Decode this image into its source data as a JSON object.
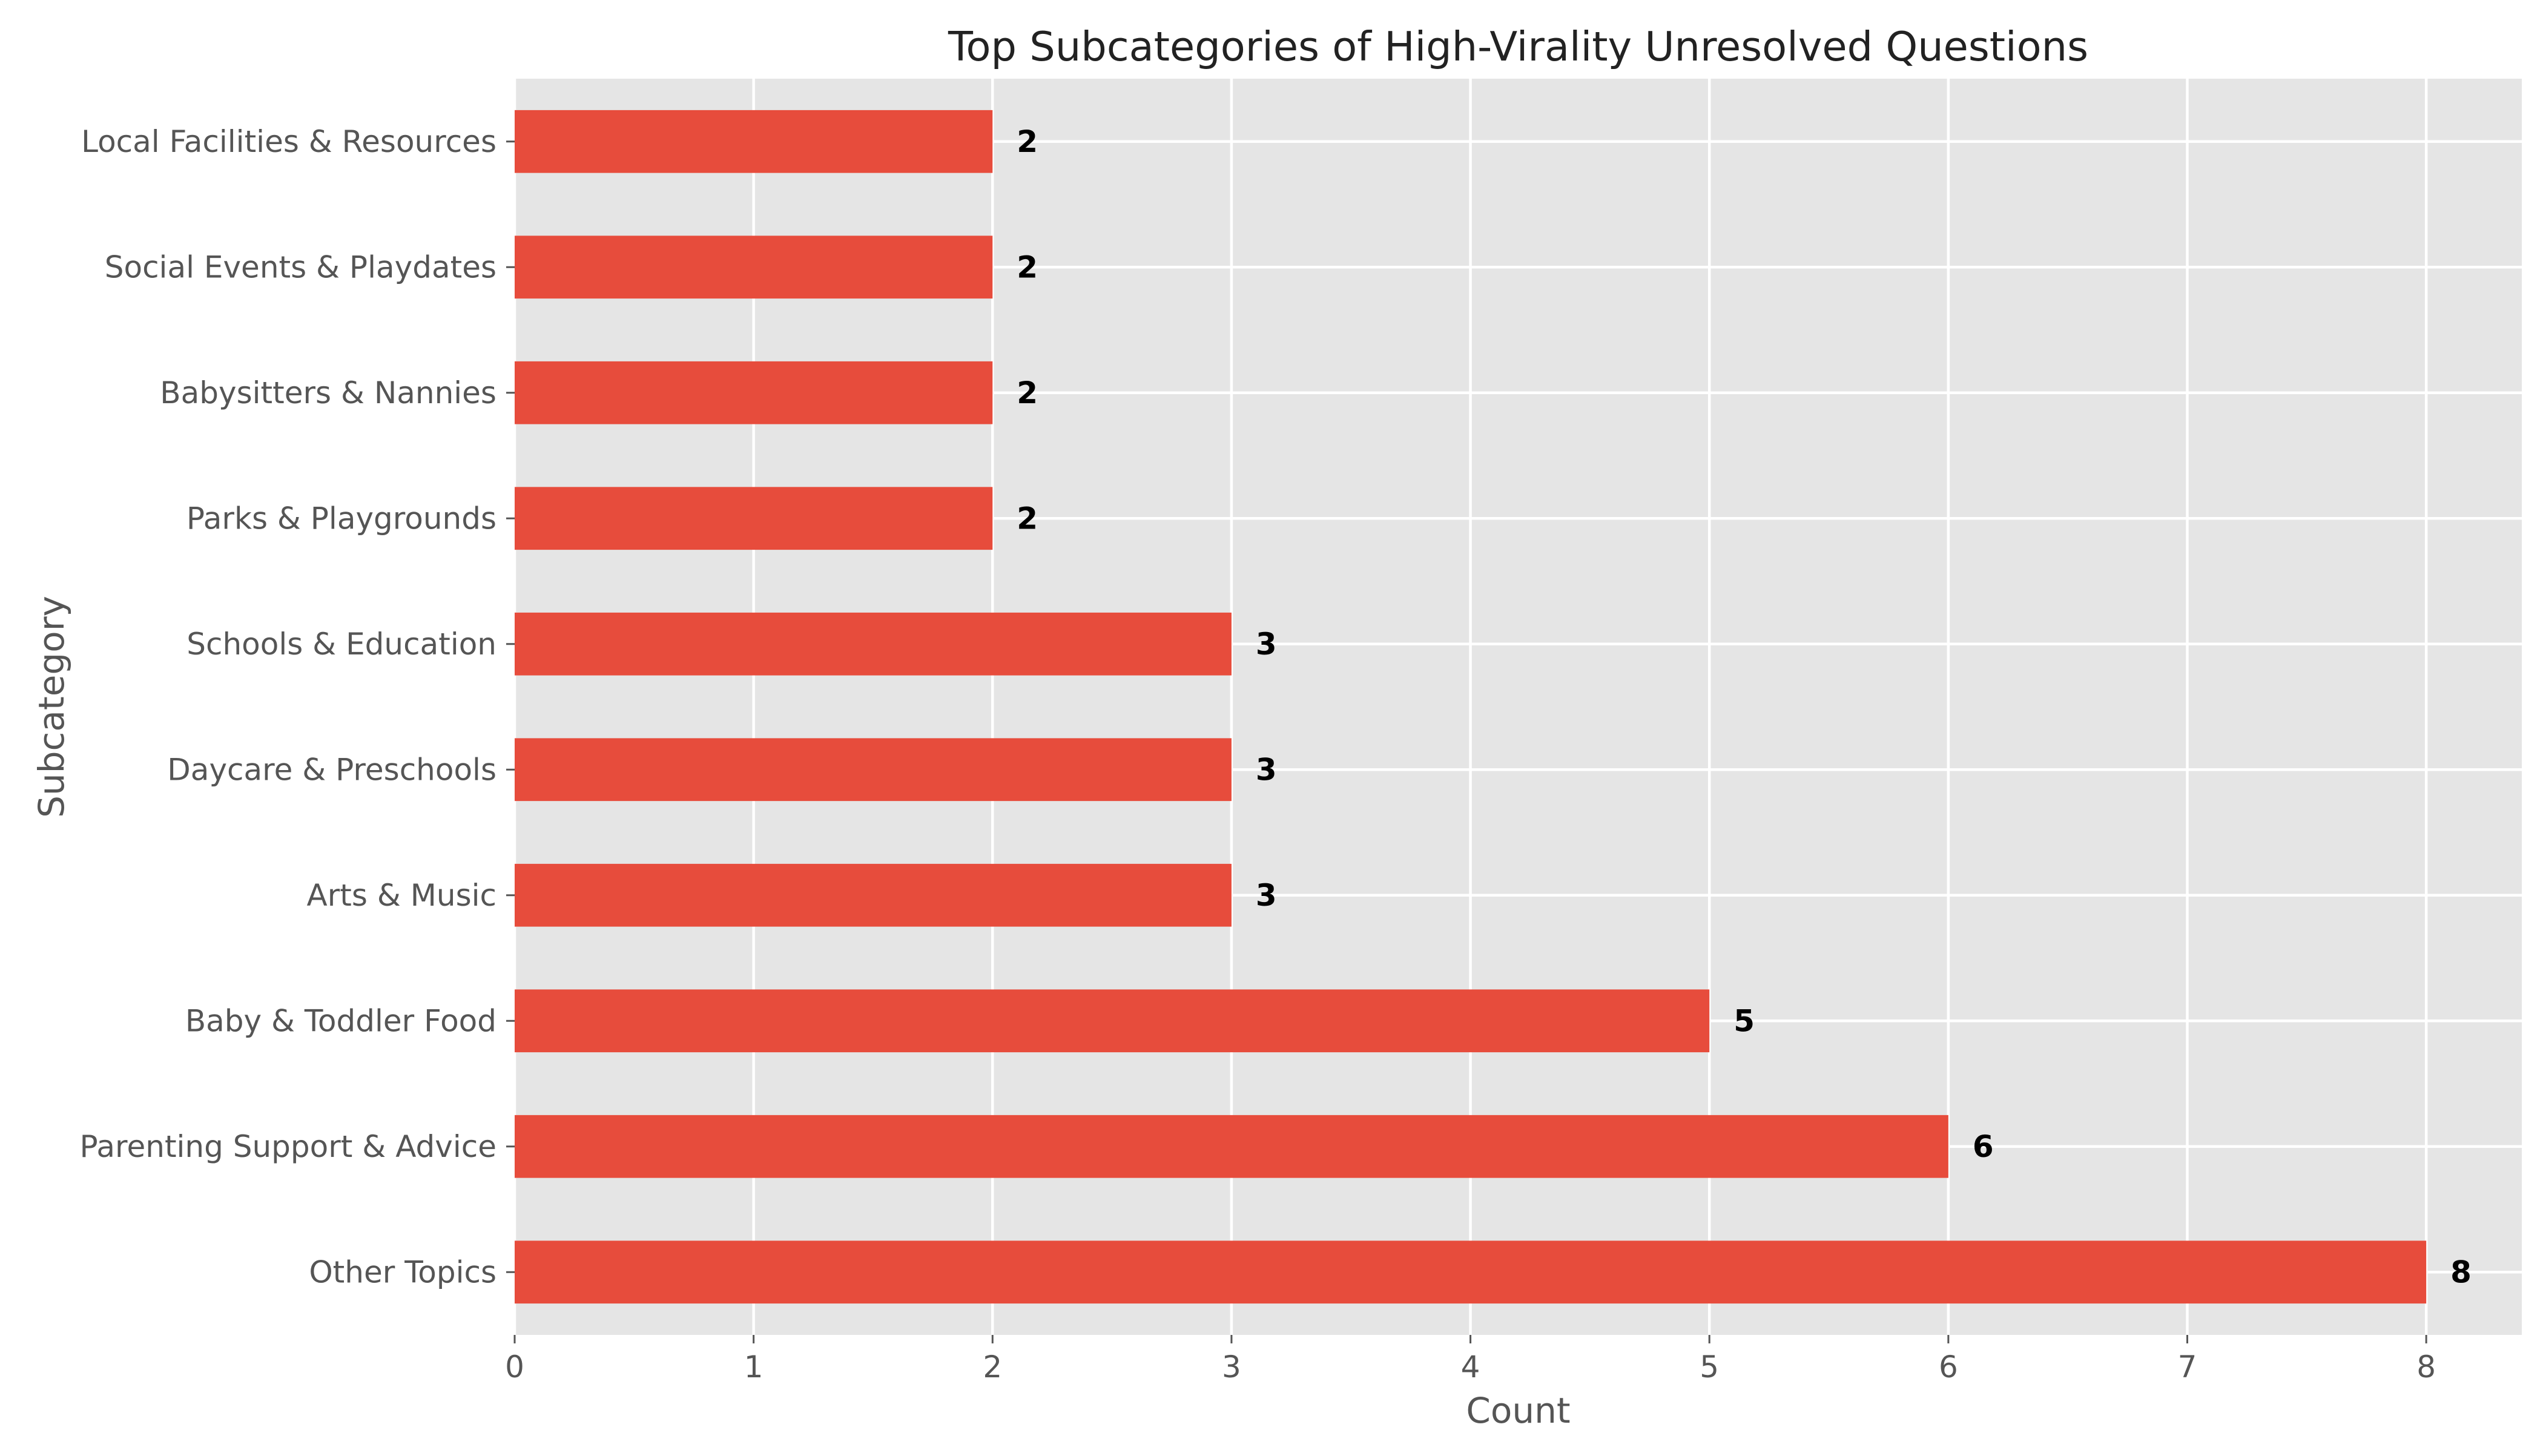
{
  "chart_data": {
    "type": "bar",
    "orientation": "horizontal",
    "title": "Top Subcategories of High-Virality Unresolved Questions",
    "xlabel": "Count",
    "ylabel": "Subcategory",
    "categories": [
      "Other Topics",
      "Parenting Support & Advice",
      "Baby & Toddler Food",
      "Arts & Music",
      "Daycare & Preschools",
      "Schools & Education",
      "Parks & Playgrounds",
      "Babysitters & Nannies",
      "Social Events & Playdates",
      "Local Facilities & Resources"
    ],
    "values": [
      8,
      6,
      5,
      3,
      3,
      3,
      2,
      2,
      2,
      2
    ],
    "xlim": [
      0,
      8.4
    ],
    "xticks": [
      0,
      1,
      2,
      3,
      4,
      5,
      6,
      7,
      8
    ],
    "grid": true,
    "legend": "none",
    "colors": {
      "bar": "#E74C3C",
      "plot_background": "#E5E5E5",
      "grid": "#FFFFFF",
      "tick_label": "#555555",
      "text": "#222222",
      "data_label": "#000000"
    }
  }
}
